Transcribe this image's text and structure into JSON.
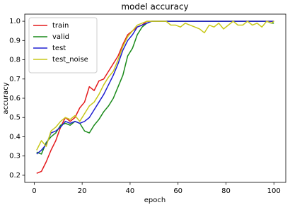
{
  "chart_data": {
    "type": "line",
    "title": "model accuracy",
    "xlabel": "epoch",
    "ylabel": "accuracy",
    "x": [
      1,
      3,
      5,
      7,
      9,
      11,
      13,
      15,
      17,
      19,
      21,
      23,
      25,
      27,
      29,
      31,
      33,
      35,
      37,
      39,
      41,
      43,
      45,
      47,
      49,
      51,
      53,
      55,
      57,
      59,
      61,
      63,
      65,
      67,
      69,
      71,
      73,
      75,
      77,
      79,
      81,
      83,
      85,
      87,
      89,
      91,
      93,
      95,
      97,
      99,
      100
    ],
    "series": [
      {
        "name": "train",
        "color": "#e41a1c",
        "values": [
          0.21,
          0.22,
          0.27,
          0.33,
          0.38,
          0.45,
          0.5,
          0.48,
          0.5,
          0.55,
          0.58,
          0.66,
          0.64,
          0.69,
          0.7,
          0.74,
          0.78,
          0.82,
          0.88,
          0.93,
          0.95,
          0.97,
          0.98,
          1.0,
          1.0,
          1.0,
          1.0,
          1.0,
          1.0,
          1.0,
          1.0,
          1.0,
          1.0,
          1.0,
          1.0,
          1.0,
          1.0,
          1.0,
          1.0,
          1.0,
          1.0,
          1.0,
          1.0,
          1.0,
          1.0,
          1.0,
          1.0,
          1.0,
          1.0,
          1.0,
          1.0
        ]
      },
      {
        "name": "valid",
        "color": "#1a8a1a",
        "values": [
          0.32,
          0.31,
          0.37,
          0.4,
          0.42,
          0.46,
          0.47,
          0.46,
          0.48,
          0.47,
          0.43,
          0.42,
          0.46,
          0.49,
          0.53,
          0.56,
          0.6,
          0.66,
          0.72,
          0.82,
          0.86,
          0.93,
          0.97,
          0.99,
          1.0,
          1.0,
          1.0,
          1.0,
          1.0,
          1.0,
          1.0,
          1.0,
          1.0,
          1.0,
          1.0,
          1.0,
          1.0,
          1.0,
          1.0,
          1.0,
          1.0,
          1.0,
          1.0,
          1.0,
          1.0,
          1.0,
          1.0,
          1.0,
          1.0,
          0.99,
          0.99
        ]
      },
      {
        "name": "test",
        "color": "#1f1fd0",
        "values": [
          0.31,
          0.33,
          0.36,
          0.42,
          0.43,
          0.45,
          0.48,
          0.47,
          0.48,
          0.47,
          0.48,
          0.5,
          0.54,
          0.58,
          0.62,
          0.67,
          0.72,
          0.78,
          0.85,
          0.9,
          0.93,
          0.97,
          0.98,
          0.99,
          1.0,
          1.0,
          1.0,
          1.0,
          1.0,
          1.0,
          1.0,
          1.0,
          1.0,
          1.0,
          1.0,
          1.0,
          1.0,
          1.0,
          1.0,
          1.0,
          1.0,
          1.0,
          1.0,
          1.0,
          1.0,
          1.0,
          1.0,
          1.0,
          1.0,
          1.0,
          1.0
        ]
      },
      {
        "name": "test_noise",
        "color": "#c8c81a",
        "values": [
          0.33,
          0.38,
          0.35,
          0.43,
          0.45,
          0.48,
          0.5,
          0.49,
          0.51,
          0.48,
          0.52,
          0.56,
          0.58,
          0.62,
          0.67,
          0.71,
          0.74,
          0.8,
          0.87,
          0.92,
          0.95,
          0.98,
          0.99,
          1.0,
          1.0,
          1.0,
          1.0,
          1.0,
          0.98,
          0.98,
          0.97,
          0.99,
          0.98,
          0.97,
          0.96,
          0.94,
          0.98,
          0.97,
          0.99,
          0.96,
          0.98,
          1.0,
          0.98,
          0.98,
          1.0,
          0.98,
          0.99,
          0.97,
          1.0,
          0.99,
          1.0
        ]
      }
    ],
    "xlim": [
      -3.95,
      104.95
    ],
    "ylim": [
      0.163,
      1.037
    ],
    "xticks": [
      0,
      20,
      40,
      60,
      80,
      100
    ],
    "yticks": [
      0.2,
      0.3,
      0.4,
      0.5,
      0.6,
      0.7,
      0.8,
      0.9,
      {
        "value": 1,
        "label": "1.0"
      }
    ],
    "legend": "upper left"
  }
}
